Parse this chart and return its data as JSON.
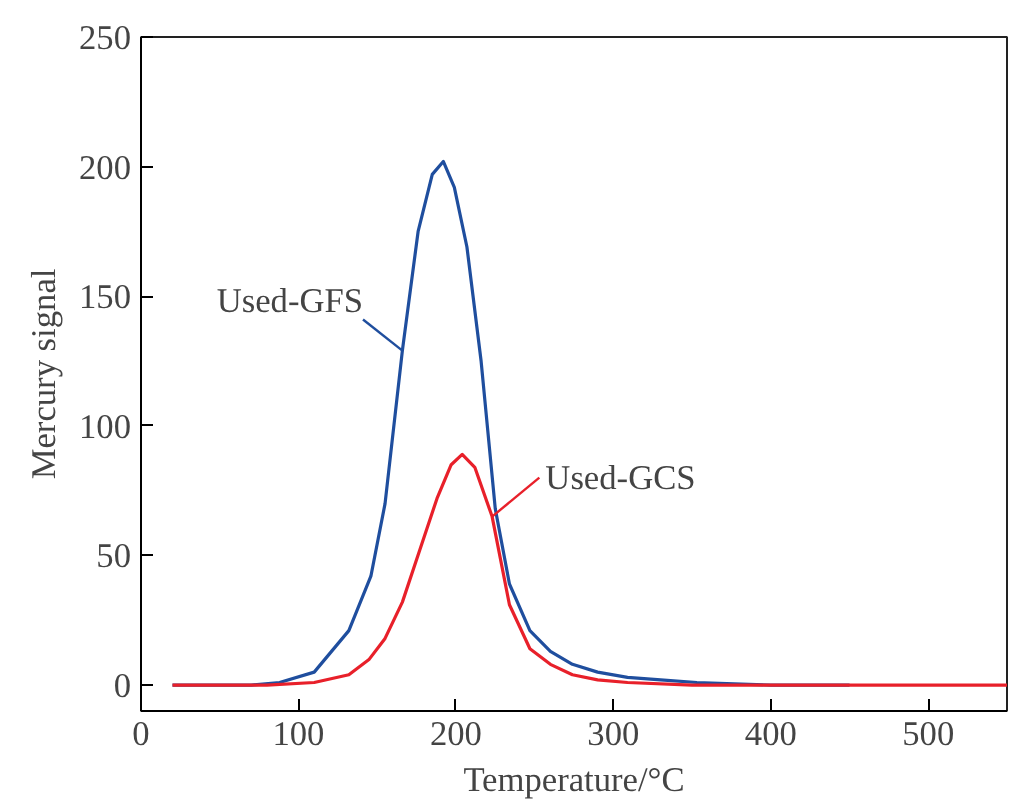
{
  "chart_data": {
    "type": "line",
    "xlabel": "Temperature/°C",
    "ylabel": "Mercury signal",
    "xlim": [
      0,
      550
    ],
    "ylim": [
      -10,
      250
    ],
    "xticks": [
      0,
      100,
      200,
      300,
      400,
      500
    ],
    "yticks": [
      0,
      50,
      100,
      150,
      200,
      250
    ],
    "grid": false,
    "line_style": "solid",
    "marker": "none",
    "series": [
      {
        "name": "Used-GFS",
        "color": "#1f4e9e",
        "x": [
          20,
          50,
          70,
          88,
          110,
          132,
          146,
          155,
          166,
          176,
          185,
          192,
          199,
          207,
          216,
          225,
          234,
          247,
          260,
          274,
          290,
          309,
          330,
          353,
          400,
          450
        ],
        "values": [
          0,
          0,
          0,
          1,
          5,
          21,
          42,
          70,
          129,
          175,
          197,
          202,
          192,
          169,
          125,
          68,
          39,
          21,
          13,
          8,
          5,
          3,
          2,
          1,
          0,
          0
        ]
      },
      {
        "name": "Used-GCS",
        "color": "#e8202a",
        "x": [
          20,
          50,
          80,
          110,
          132,
          145,
          155,
          166,
          177,
          188,
          197,
          204,
          212,
          223,
          234,
          247,
          260,
          274,
          290,
          309,
          350,
          400,
          450,
          500,
          550
        ],
        "values": [
          0,
          0,
          0,
          1,
          4,
          10,
          18,
          32,
          52,
          72,
          85,
          89,
          84,
          65,
          31,
          14,
          8,
          4,
          2,
          1,
          0,
          0,
          0,
          0,
          0
        ]
      }
    ]
  }
}
